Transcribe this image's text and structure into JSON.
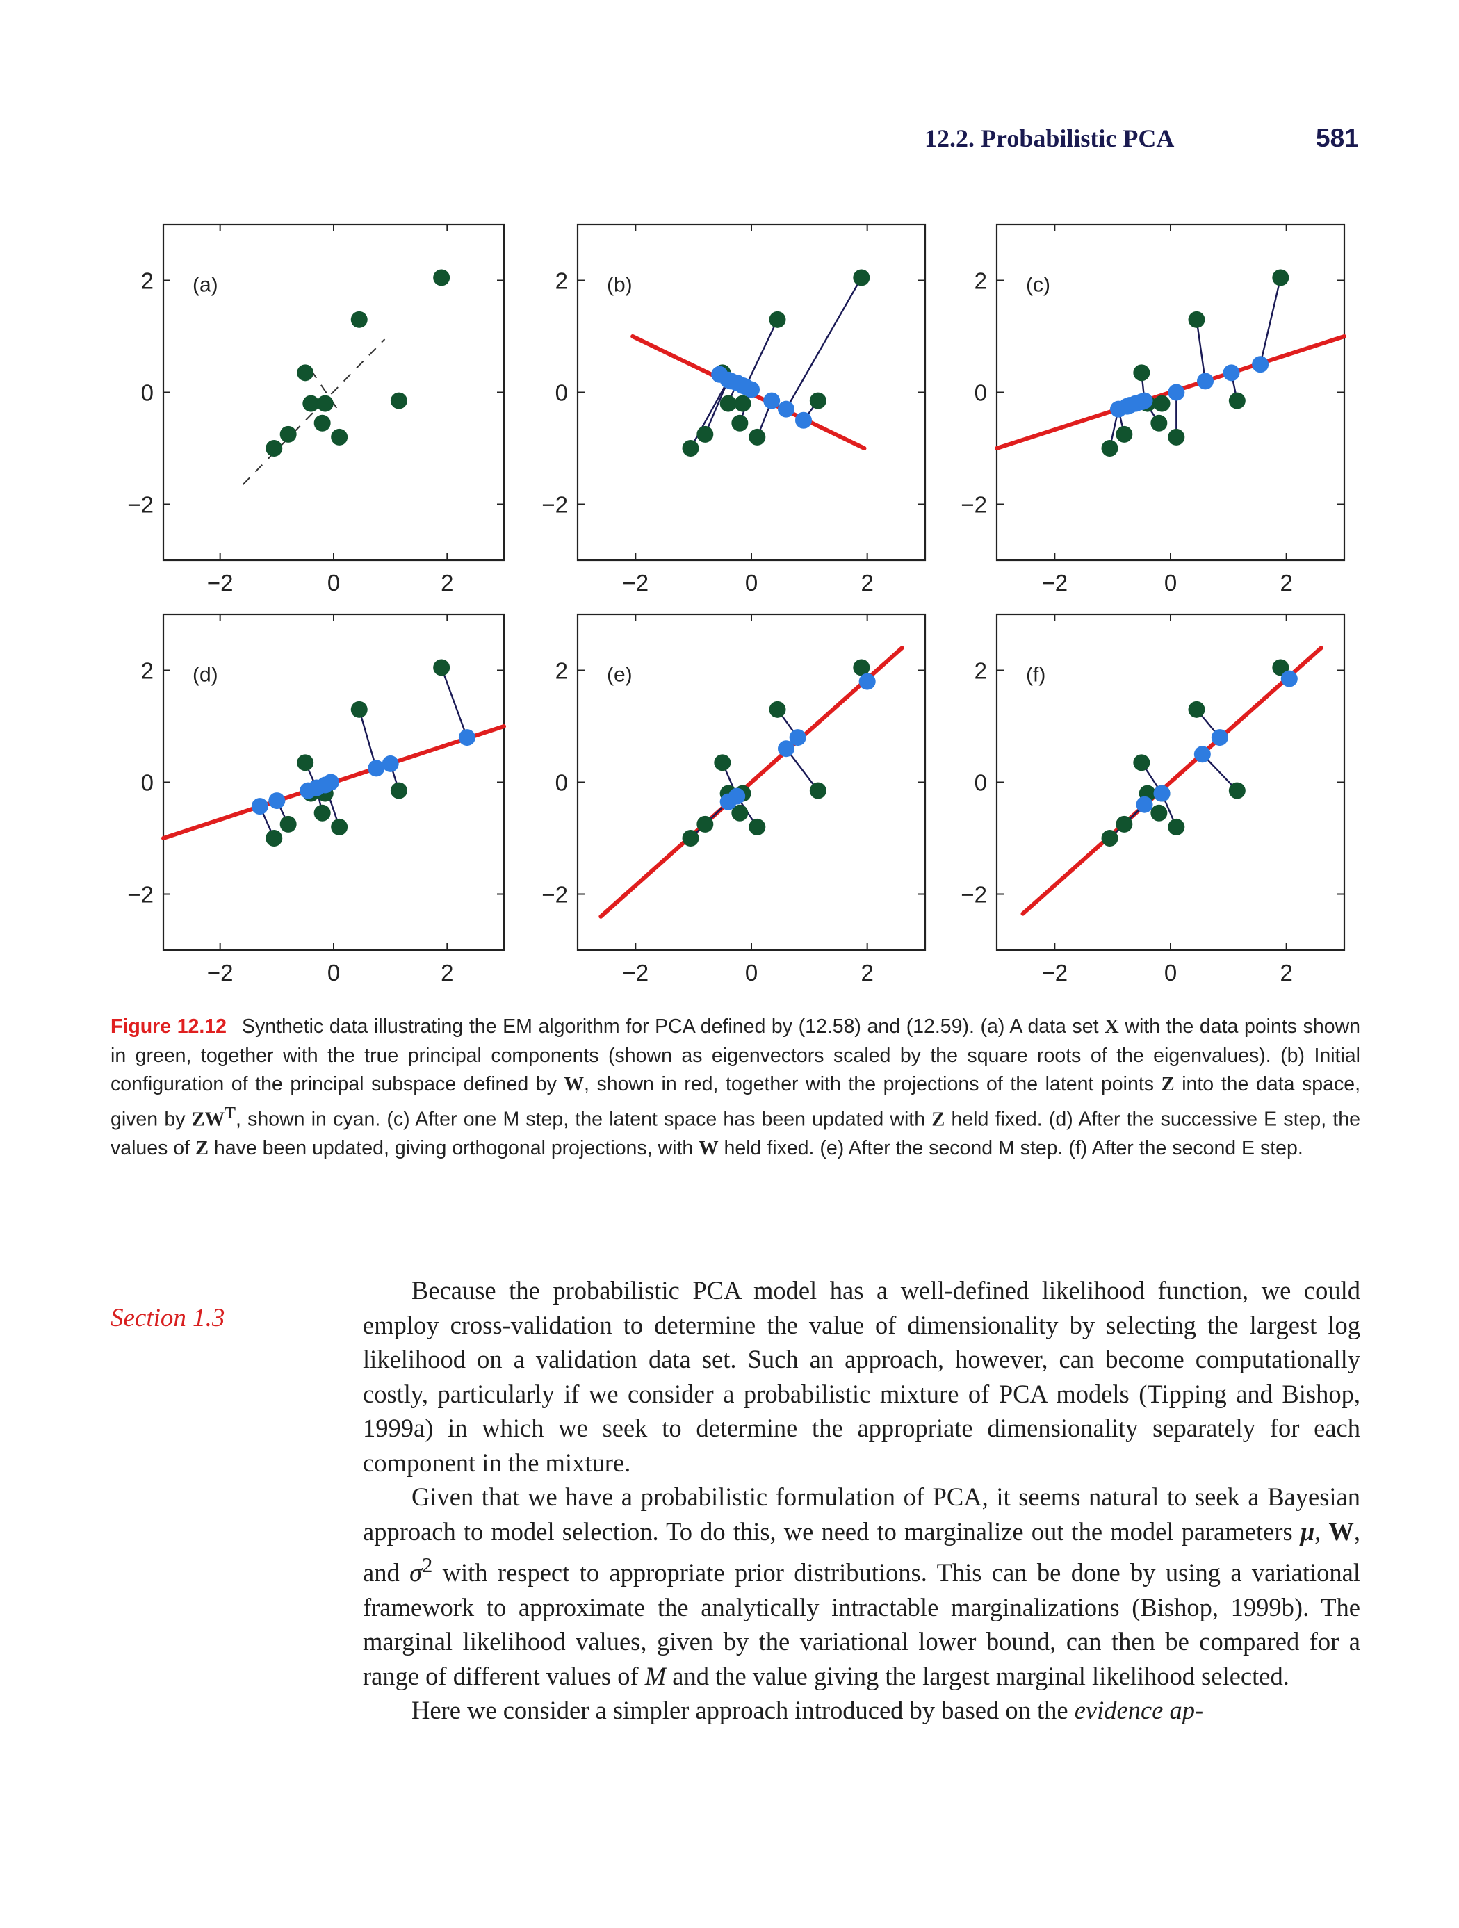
{
  "header": {
    "section_title": "12.2. Probabilistic PCA",
    "page_number": "581"
  },
  "chart_data": [
    {
      "type": "scatter",
      "panel": "(a)",
      "xlim": [
        -3,
        3
      ],
      "ylim": [
        -3,
        3
      ],
      "xticks": [
        "−2",
        "0",
        "2"
      ],
      "yticks": [
        "2",
        "0",
        "−2"
      ],
      "points": [
        [
          -1.05,
          -1.0
        ],
        [
          -0.8,
          -0.75
        ],
        [
          -0.5,
          0.35
        ],
        [
          -0.4,
          -0.2
        ],
        [
          -0.15,
          -0.2
        ],
        [
          -0.2,
          -0.55
        ],
        [
          0.1,
          -0.8
        ],
        [
          0.45,
          1.3
        ],
        [
          1.15,
          -0.15
        ],
        [
          1.9,
          2.05
        ]
      ],
      "principal_axes": [
        [
          [
            -1.6,
            -1.65
          ],
          [
            0.9,
            0.95
          ]
        ],
        [
          [
            -0.4,
            0.4
          ],
          [
            0.1,
            -0.35
          ]
        ]
      ]
    },
    {
      "type": "scatter",
      "panel": "(b)",
      "xlim": [
        -3,
        3
      ],
      "ylim": [
        -3,
        3
      ],
      "xticks": [
        "−2",
        "0",
        "2"
      ],
      "yticks": [
        "2",
        "0",
        "−2"
      ],
      "points": [
        [
          -1.05,
          -1.0
        ],
        [
          -0.8,
          -0.75
        ],
        [
          -0.5,
          0.35
        ],
        [
          -0.4,
          -0.2
        ],
        [
          -0.15,
          -0.2
        ],
        [
          -0.2,
          -0.55
        ],
        [
          0.1,
          -0.8
        ],
        [
          0.45,
          1.3
        ],
        [
          1.15,
          -0.15
        ],
        [
          1.9,
          2.05
        ]
      ],
      "projections": [
        [
          -0.55,
          0.32
        ],
        [
          -0.4,
          0.22
        ],
        [
          -0.35,
          0.2
        ],
        [
          -0.25,
          0.17
        ],
        [
          -0.15,
          0.12
        ],
        [
          -0.1,
          0.1
        ],
        [
          0.0,
          0.05
        ],
        [
          0.35,
          -0.15
        ],
        [
          0.6,
          -0.3
        ],
        [
          0.9,
          -0.5
        ]
      ],
      "subspace_line": [
        [
          -2.05,
          1.0
        ],
        [
          1.95,
          -1.0
        ]
      ]
    },
    {
      "type": "scatter",
      "panel": "(c)",
      "xlim": [
        -3,
        3
      ],
      "ylim": [
        -3,
        3
      ],
      "xticks": [
        "−2",
        "0",
        "2"
      ],
      "yticks": [
        "2",
        "0",
        "−2"
      ],
      "points": [
        [
          -1.05,
          -1.0
        ],
        [
          -0.8,
          -0.75
        ],
        [
          -0.5,
          0.35
        ],
        [
          -0.4,
          -0.2
        ],
        [
          -0.15,
          -0.2
        ],
        [
          -0.2,
          -0.55
        ],
        [
          0.1,
          -0.8
        ],
        [
          0.45,
          1.3
        ],
        [
          1.15,
          -0.15
        ],
        [
          1.9,
          2.05
        ]
      ],
      "projections": [
        [
          -0.9,
          -0.3
        ],
        [
          -0.75,
          -0.25
        ],
        [
          -0.7,
          -0.23
        ],
        [
          -0.6,
          -0.2
        ],
        [
          -0.5,
          -0.17
        ],
        [
          -0.45,
          -0.15
        ],
        [
          0.1,
          0.0
        ],
        [
          0.6,
          0.2
        ],
        [
          1.05,
          0.35
        ],
        [
          1.55,
          0.5
        ]
      ],
      "subspace_line": [
        [
          -3.0,
          -1.0
        ],
        [
          3.0,
          1.0
        ]
      ]
    },
    {
      "type": "scatter",
      "panel": "(d)",
      "xlim": [
        -3,
        3
      ],
      "ylim": [
        -3,
        3
      ],
      "xticks": [
        "−2",
        "0",
        "2"
      ],
      "yticks": [
        "2",
        "0",
        "−2"
      ],
      "points": [
        [
          -1.05,
          -1.0
        ],
        [
          -0.8,
          -0.75
        ],
        [
          -0.5,
          0.35
        ],
        [
          -0.4,
          -0.2
        ],
        [
          -0.15,
          -0.2
        ],
        [
          -0.2,
          -0.55
        ],
        [
          0.1,
          -0.8
        ],
        [
          0.45,
          1.3
        ],
        [
          1.15,
          -0.15
        ],
        [
          1.9,
          2.05
        ]
      ],
      "projections": [
        [
          -1.3,
          -0.43
        ],
        [
          -1.0,
          -0.33
        ],
        [
          -0.45,
          -0.15
        ],
        [
          -0.3,
          -0.1
        ],
        [
          -0.15,
          -0.05
        ],
        [
          -0.05,
          0.0
        ],
        [
          0.75,
          0.25
        ],
        [
          1.0,
          0.33
        ],
        [
          2.35,
          0.8
        ]
      ],
      "subspace_line": [
        [
          -3.0,
          -1.0
        ],
        [
          3.0,
          1.0
        ]
      ]
    },
    {
      "type": "scatter",
      "panel": "(e)",
      "xlim": [
        -3,
        3
      ],
      "ylim": [
        -3,
        3
      ],
      "xticks": [
        "−2",
        "0",
        "2"
      ],
      "yticks": [
        "2",
        "0",
        "−2"
      ],
      "points": [
        [
          -1.05,
          -1.0
        ],
        [
          -0.8,
          -0.75
        ],
        [
          -0.5,
          0.35
        ],
        [
          -0.4,
          -0.2
        ],
        [
          -0.15,
          -0.2
        ],
        [
          -0.2,
          -0.55
        ],
        [
          0.1,
          -0.8
        ],
        [
          0.45,
          1.3
        ],
        [
          1.15,
          -0.15
        ],
        [
          1.9,
          2.05
        ]
      ],
      "projections": [
        [
          -0.4,
          -0.35
        ],
        [
          -0.25,
          -0.25
        ],
        [
          0.6,
          0.6
        ],
        [
          0.8,
          0.8
        ],
        [
          2.0,
          1.8
        ]
      ],
      "subspace_line": [
        [
          -2.6,
          -2.4
        ],
        [
          2.6,
          2.4
        ]
      ]
    },
    {
      "type": "scatter",
      "panel": "(f)",
      "xlim": [
        -3,
        3
      ],
      "ylim": [
        -3,
        3
      ],
      "xticks": [
        "−2",
        "0",
        "2"
      ],
      "yticks": [
        "2",
        "0",
        "−2"
      ],
      "points": [
        [
          -1.05,
          -1.0
        ],
        [
          -0.8,
          -0.75
        ],
        [
          -0.5,
          0.35
        ],
        [
          -0.4,
          -0.2
        ],
        [
          -0.15,
          -0.2
        ],
        [
          -0.2,
          -0.55
        ],
        [
          0.1,
          -0.8
        ],
        [
          0.45,
          1.3
        ],
        [
          1.15,
          -0.15
        ],
        [
          1.9,
          2.05
        ]
      ],
      "projections": [
        [
          -0.45,
          -0.4
        ],
        [
          -0.15,
          -0.2
        ],
        [
          0.55,
          0.5
        ],
        [
          0.85,
          0.8
        ],
        [
          2.05,
          1.85
        ]
      ],
      "subspace_line": [
        [
          -2.55,
          -2.35
        ],
        [
          2.6,
          2.4
        ]
      ]
    }
  ],
  "colors": {
    "data_point": "#11532e",
    "projection_point": "#2e7ce0",
    "subspace_line": "#e01e1e",
    "connector": "#1a1a55",
    "caption_label": "#e02020",
    "margin_note": "#d82020"
  },
  "caption": {
    "label": "Figure 12.12",
    "part1": "Synthetic data illustrating the EM algorithm for PCA defined by (12.58) and (12.59). (a) A data set ",
    "sym_X": "X",
    "part2": " with the data points shown in green, together with the true principal components (shown as eigenvectors scaled by the square roots of the eigenvalues). (b) Initial configuration of the principal subspace defined by ",
    "sym_W1": "W",
    "part3": ", shown in red, together with the projections of the latent points ",
    "sym_Z1": "Z",
    "part4": " into the data space, given by ",
    "sym_ZW": "ZW",
    "sup_T": "T",
    "part5": ", shown in cyan. (c) After one M step, the latent space has been updated with ",
    "sym_Z2": "Z",
    "part6": " held fixed. (d) After the successive E step, the values of ",
    "sym_Z3": "Z",
    "part7": " have been updated, giving orthogonal projections, with ",
    "sym_W2": "W",
    "part8": " held fixed. (e) After the second M step. (f) After the second E step."
  },
  "margin_note": "Section 1.3",
  "body": {
    "para1": "Because the probabilistic PCA model has a well-defined likelihood function, we could employ cross-validation to determine the value of dimensionality by selecting the largest log likelihood on a validation data set. Such an approach, however, can become computationally costly, particularly if we consider a probabilistic mixture of PCA models (Tipping and Bishop, 1999a) in which we seek to determine the appropriate dimensionality separately for each component in the mixture.",
    "para2_a": "Given that we have a probabilistic formulation of PCA, it seems natural to seek a Bayesian approach to model selection. To do this, we need to marginalize out the model parameters ",
    "sym_mu": "μ",
    "para2_b": ", ",
    "sym_W": "W",
    "para2_c": ", and ",
    "sym_sigma": "σ",
    "sup_2": "2",
    "para2_d": " with respect to appropriate prior distributions. This can be done by using a variational framework to approximate the analytically intractable marginalizations (Bishop, 1999b). The marginal likelihood values, given by the variational lower bound, can then be compared for a range of different values of ",
    "sym_M": "M",
    "para2_e": " and the value giving the largest marginal likelihood selected.",
    "para3_a": "Here we consider a simpler approach introduced by based on the ",
    "para3_em": "evidence ap-"
  }
}
